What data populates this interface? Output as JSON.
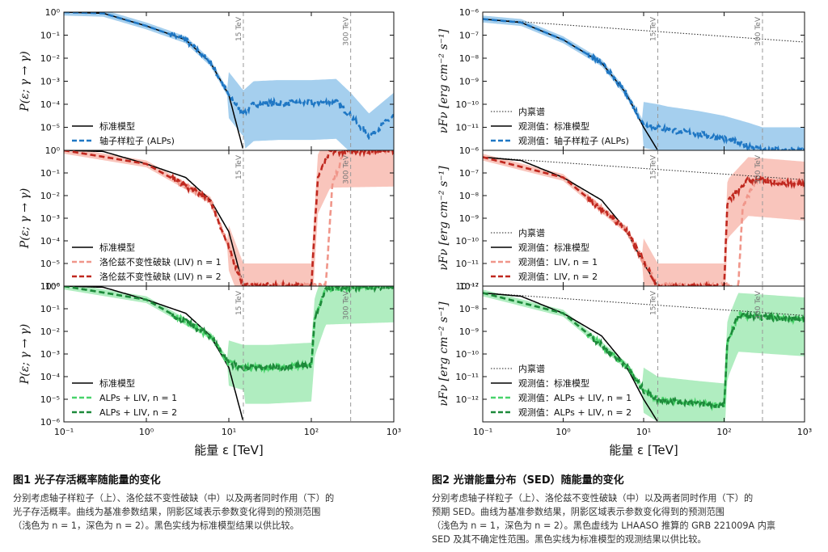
{
  "figures": [
    {
      "caption_title": "图1  光子存活概率随能量的变化",
      "caption_text": [
        "分别考虑轴子样粒子（上）、洛伦兹不变性破缺（中）以及两者同时作用（下）的",
        "光子存活概率。曲线为基准参数结果，阴影区域表示参数变化得到的预测范围",
        "（浅色为 n = 1，深色为 n = 2）。黑色实线为标准模型结果以供比较。"
      ]
    },
    {
      "caption_title": "图2   光谱能量分布（SED）随能量的变化",
      "caption_text": [
        "分别考虑轴子样粒子（上）、洛伦兹不变性破缺（中）以及两者同时作用（下）的",
        "预期 SED。曲线为基准参数结果，阴影区域表示参数变化得到的预测范围",
        "（浅色为 n = 1，深色为 n = 2）。黑色虚线为 LHAASO 推算的 GRB 221009A 内禀",
        "SED 及其不确定性范围。黑色实线为标准模型的观测结果以供比较。"
      ]
    }
  ],
  "chart_data": [
    {
      "type": "line",
      "xlabel": "能量 ε [TeV]",
      "ylabel": "P(ε; γ → γ)",
      "x_scale": "log",
      "xlim": [
        0.1,
        1000
      ],
      "x_ticks": [
        "10⁻¹",
        "10⁰",
        "10¹",
        "10²",
        "10³"
      ],
      "vlines": [
        {
          "x": 15,
          "label": "15 TeV"
        },
        {
          "x": 300,
          "label": "300 TeV"
        }
      ],
      "panels": [
        {
          "y_scale": "log",
          "ylim_exp": [
            -6,
            0
          ],
          "y_ticks": [
            "10⁻⁵",
            "10⁻⁴",
            "10⁻³",
            "10⁻²",
            "10⁻¹",
            "10⁰"
          ],
          "legend": [
            "标准模型",
            "轴子样粒子 (ALPs)"
          ],
          "colors": {
            "main": "#1f77c4",
            "band": "#8fc3ea"
          },
          "series": [
            {
              "name": "标准模型",
              "x": [
                0.1,
                0.3,
                1,
                3,
                6,
                10,
                15
              ],
              "log10_y": [
                0,
                -0.05,
                -0.6,
                -1.2,
                -2.2,
                -3.6,
                -6
              ]
            },
            {
              "name": "轴子样粒子 (ALPs)",
              "x": [
                0.1,
                0.3,
                1,
                3,
                6,
                10,
                15,
                20,
                40,
                100,
                200,
                300,
                500,
                1000
              ],
              "log10_y": [
                0,
                -0.05,
                -0.6,
                -1.2,
                -2.2,
                -3.6,
                -4.4,
                -4.0,
                -3.95,
                -3.95,
                -3.9,
                -4.5,
                -5.4,
                -4.5
              ]
            }
          ]
        },
        {
          "y_scale": "log",
          "ylim_exp": [
            -6,
            0
          ],
          "y_ticks": [
            "10⁻⁶",
            "10⁻⁵",
            "10⁻⁴",
            "10⁻³",
            "10⁻²",
            "10⁻¹",
            "10⁰"
          ],
          "legend": [
            "标准模型",
            "洛伦兹不变性破缺 (LIV) n = 1",
            "洛伦兹不变性破缺 (LIV) n = 2"
          ],
          "colors": {
            "main": "#c0281f",
            "light": "#f0968a",
            "band": "#f7b7ab"
          },
          "series": [
            {
              "name": "标准模型",
              "x": [
                0.1,
                0.3,
                1,
                3,
                6,
                10,
                15
              ],
              "log10_y": [
                0,
                -0.05,
                -0.6,
                -1.2,
                -2.2,
                -3.6,
                -6
              ]
            },
            {
              "name": "洛伦兹不变性破缺 (LIV) n = 1",
              "x": [
                0.1,
                1,
                6,
                15,
                150,
                180,
                250,
                1000
              ],
              "log10_y": [
                0,
                -0.6,
                -2.2,
                -6,
                -6,
                -1.5,
                -0.05,
                0
              ]
            },
            {
              "name": "洛伦兹不变性破缺 (LIV) n = 2",
              "x": [
                0.1,
                1,
                6,
                15,
                100,
                120,
                170,
                1000
              ],
              "log10_y": [
                0,
                -0.6,
                -2.2,
                -6,
                -6,
                -1.2,
                -0.05,
                0
              ]
            }
          ]
        },
        {
          "y_scale": "log",
          "ylim_exp": [
            -6,
            0
          ],
          "y_ticks": [
            "10⁻⁶",
            "10⁻⁵",
            "10⁻⁴",
            "10⁻³",
            "10⁻²",
            "10⁻¹",
            "10⁰"
          ],
          "legend": [
            "标准模型",
            "ALPs + LIV, n = 1",
            "ALPs + LIV, n = 2"
          ],
          "colors": {
            "main": "#1d8a3a",
            "light": "#48d36a",
            "band": "#9ce8b0"
          },
          "series": [
            {
              "name": "标准模型",
              "x": [
                0.1,
                0.3,
                1,
                3,
                6,
                10,
                15
              ],
              "log10_y": [
                0,
                -0.05,
                -0.6,
                -1.2,
                -2.2,
                -3.6,
                -6
              ]
            },
            {
              "name": "ALPs + LIV, n = 1",
              "x": [
                0.1,
                1,
                6,
                10,
                15,
                30,
                100,
                110,
                150,
                1000
              ],
              "log10_y": [
                0,
                -0.6,
                -2.2,
                -3.4,
                -3.6,
                -3.6,
                -3.5,
                -1.5,
                -0.1,
                0
              ]
            },
            {
              "name": "ALPs + LIV, n = 2",
              "x": [
                0.1,
                1,
                6,
                10,
                15,
                30,
                100,
                110,
                150,
                1000
              ],
              "log10_y": [
                0,
                -0.6,
                -2.2,
                -3.4,
                -3.6,
                -3.6,
                -3.5,
                -1.5,
                -0.1,
                0
              ]
            }
          ]
        }
      ]
    },
    {
      "type": "line",
      "xlabel": "能量 ε [TeV]",
      "ylabel": "νFν [erg cm⁻² s⁻¹]",
      "x_scale": "log",
      "xlim": [
        0.1,
        1000
      ],
      "x_ticks": [
        "10⁻¹",
        "10⁰",
        "10¹",
        "10²",
        "10³"
      ],
      "vlines": [
        {
          "x": 15,
          "label": "15 TeV"
        },
        {
          "x": 300,
          "label": "300 TeV"
        }
      ],
      "panels": [
        {
          "y_scale": "log",
          "ylim_exp": [
            -12,
            -6
          ],
          "y_ticks": [
            "10⁻¹¹",
            "10⁻¹⁰",
            "10⁻⁹",
            "10⁻⁸",
            "10⁻⁷",
            "10⁻⁶"
          ],
          "legend": [
            "内禀谱",
            "观测值：标准模型",
            "观测值：轴子样粒子 (ALPs)"
          ],
          "colors": {
            "main": "#1f77c4",
            "band": "#8fc3ea"
          },
          "series": [
            {
              "name": "内禀谱",
              "x": [
                0.1,
                1000
              ],
              "log10_y": [
                -6.3,
                -7.3
              ]
            },
            {
              "name": "观测值：标准模型",
              "x": [
                0.1,
                0.3,
                1,
                3,
                6,
                10,
                15
              ],
              "log10_y": [
                -6.3,
                -6.45,
                -7.2,
                -8.2,
                -9.5,
                -11.0,
                -12
              ]
            },
            {
              "name": "观测值：轴子样粒子 (ALPs)",
              "x": [
                0.1,
                0.3,
                1,
                3,
                6,
                10,
                15,
                20,
                50,
                100,
                200,
                300,
                1000
              ],
              "log10_y": [
                -6.3,
                -6.45,
                -7.2,
                -8.2,
                -9.5,
                -10.9,
                -11.0,
                -11.1,
                -11.3,
                -11.5,
                -11.8,
                -12,
                -12
              ]
            }
          ]
        },
        {
          "y_scale": "log",
          "ylim_exp": [
            -12,
            -6
          ],
          "y_ticks": [
            "10⁻¹²",
            "10⁻¹¹",
            "10⁻¹⁰",
            "10⁻⁹",
            "10⁻⁸",
            "10⁻⁷",
            "10⁻⁶"
          ],
          "legend": [
            "内禀谱",
            "观测值：标准模型",
            "观测值：LIV, n = 1",
            "观测值：LIV, n = 2"
          ],
          "colors": {
            "main": "#c0281f",
            "light": "#f0968a",
            "band": "#f7b7ab"
          },
          "series": [
            {
              "name": "内禀谱",
              "x": [
                0.1,
                1000
              ],
              "log10_y": [
                -6.3,
                -7.3
              ]
            },
            {
              "name": "观测值：标准模型",
              "x": [
                0.1,
                0.3,
                1,
                3,
                6,
                10,
                15
              ],
              "log10_y": [
                -6.3,
                -6.45,
                -7.2,
                -8.2,
                -9.5,
                -11.0,
                -12
              ]
            },
            {
              "name": "观测值：LIV, n = 1",
              "x": [
                0.1,
                1,
                6,
                15,
                150,
                170,
                250,
                1000
              ],
              "log10_y": [
                -6.3,
                -7.2,
                -9.5,
                -12,
                -12,
                -8.5,
                -7.3,
                -7.5
              ]
            },
            {
              "name": "观测值：LIV, n = 2",
              "x": [
                0.1,
                1,
                6,
                15,
                100,
                110,
                200,
                1000
              ],
              "log10_y": [
                -6.3,
                -7.2,
                -9.5,
                -12,
                -12,
                -8.3,
                -7.3,
                -7.5
              ]
            }
          ]
        },
        {
          "y_scale": "log",
          "ylim_exp": [
            -12,
            -6
          ],
          "y_ticks": [
            "10⁻¹²",
            "10⁻¹¹",
            "10⁻¹⁰",
            "10⁻⁹",
            "10⁻⁸",
            "10⁻⁷"
          ],
          "legend": [
            "内禀谱",
            "观测值：标准模型",
            "观测值：ALPs + LIV, n = 1",
            "观测值：ALPs + LIV, n = 2"
          ],
          "colors": {
            "main": "#1d8a3a",
            "light": "#48d36a",
            "band": "#9ce8b0"
          },
          "series": [
            {
              "name": "内禀谱",
              "x": [
                0.1,
                1000
              ],
              "log10_y": [
                -6.3,
                -7.3
              ]
            },
            {
              "name": "观测值：标准模型",
              "x": [
                0.1,
                0.3,
                1,
                3,
                6,
                10,
                15
              ],
              "log10_y": [
                -6.3,
                -6.45,
                -7.2,
                -8.2,
                -9.5,
                -11.0,
                -12
              ]
            },
            {
              "name": "观测值：ALPs + LIV, n = 1",
              "x": [
                0.1,
                1,
                6,
                10,
                15,
                50,
                100,
                110,
                150,
                1000
              ],
              "log10_y": [
                -6.3,
                -7.2,
                -9.5,
                -10.6,
                -11.0,
                -11.2,
                -11.3,
                -8.5,
                -7.3,
                -7.5
              ]
            },
            {
              "name": "观测值：ALPs + LIV, n = 2",
              "x": [
                0.1,
                1,
                6,
                10,
                15,
                50,
                100,
                110,
                150,
                1000
              ],
              "log10_y": [
                -6.3,
                -7.2,
                -9.5,
                -10.6,
                -11.0,
                -11.2,
                -11.3,
                -8.5,
                -7.3,
                -7.5
              ]
            }
          ]
        }
      ]
    }
  ]
}
